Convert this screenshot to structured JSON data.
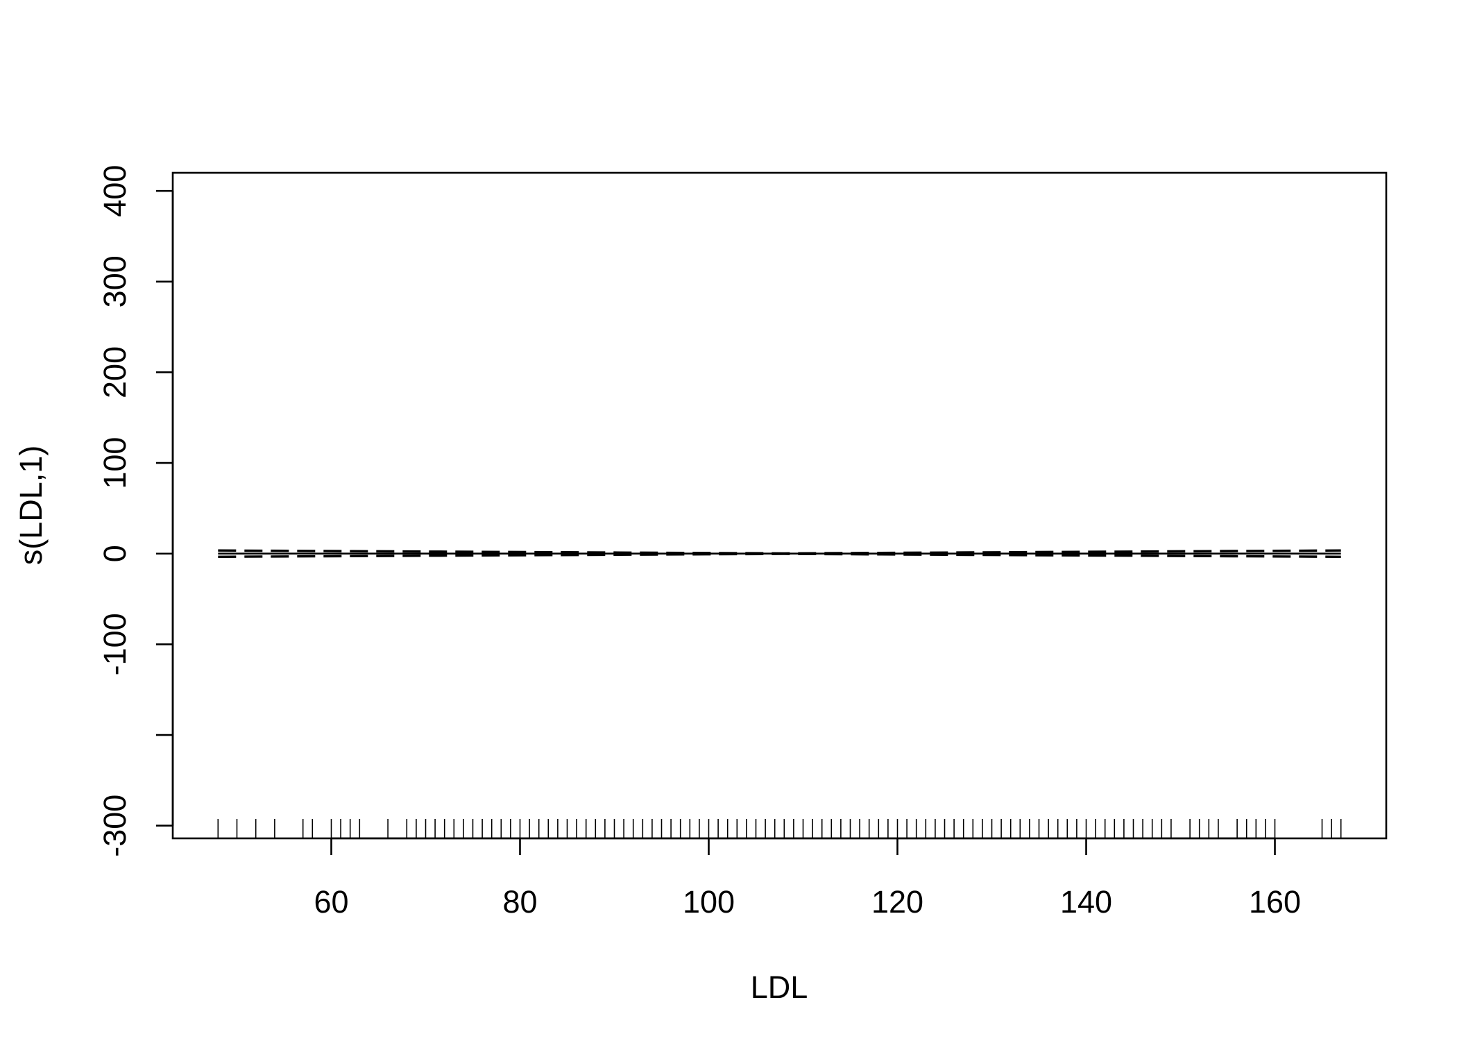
{
  "chart_data": {
    "type": "line",
    "title": "",
    "xlabel": "LDL",
    "ylabel": "s(LDL,1)",
    "xlim": [
      43.2,
      171.8
    ],
    "ylim": [
      -314,
      420
    ],
    "x_ticks": [
      60,
      80,
      100,
      120,
      140,
      160
    ],
    "y_ticks": [
      -300,
      -200,
      -100,
      0,
      100,
      200,
      300,
      400
    ],
    "x_tick_labels": [
      "60",
      "80",
      "100",
      "120",
      "140",
      "160"
    ],
    "y_tick_labels": [
      "-300",
      "",
      "-100",
      "0",
      "100",
      "200",
      "300",
      "400"
    ],
    "grid": false,
    "series": [
      {
        "x": [
          48,
          167
        ],
        "y": [
          0,
          0
        ],
        "style": "solid"
      },
      {
        "x": [
          48,
          108,
          167
        ],
        "y": [
          3.5,
          0.3,
          3.5
        ],
        "style": "dashed"
      },
      {
        "x": [
          48,
          108,
          167
        ],
        "y": [
          -3.5,
          -0.3,
          -3.5
        ],
        "style": "dashed"
      }
    ],
    "rug": [
      48,
      50,
      52,
      54,
      57,
      58,
      60,
      61,
      62,
      63,
      66,
      68,
      69,
      70,
      71,
      72,
      73,
      74,
      75,
      76,
      77,
      78,
      79,
      80,
      81,
      82,
      83,
      84,
      85,
      86,
      87,
      88,
      89,
      90,
      91,
      92,
      93,
      94,
      95,
      96,
      97,
      98,
      99,
      100,
      101,
      102,
      103,
      104,
      105,
      106,
      107,
      108,
      109,
      110,
      111,
      112,
      113,
      114,
      115,
      116,
      117,
      118,
      119,
      120,
      121,
      122,
      123,
      124,
      125,
      126,
      127,
      128,
      129,
      130,
      131,
      132,
      133,
      134,
      135,
      136,
      137,
      138,
      139,
      140,
      141,
      142,
      143,
      144,
      145,
      146,
      147,
      148,
      149,
      151,
      152,
      153,
      154,
      156,
      157,
      158,
      159,
      160,
      165,
      166,
      167
    ]
  }
}
